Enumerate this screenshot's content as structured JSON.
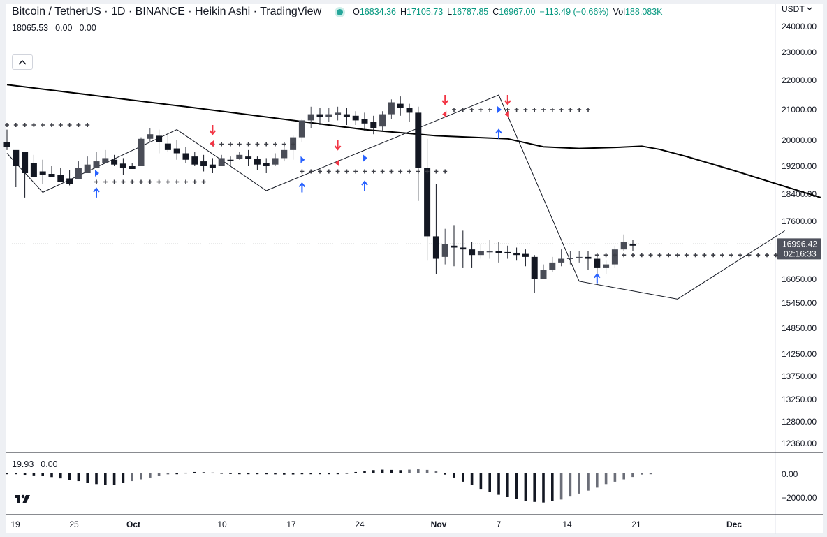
{
  "header": {
    "title": "Bitcoin / TetherUS · 1D · BINANCE · Heikin Ashi · TradingView",
    "o_label": "O",
    "o_value": "16834.36",
    "h_label": "H",
    "h_value": "17105.73",
    "l_label": "L",
    "l_value": "16787.85",
    "c_label": "C",
    "c_value": "16967.00",
    "change": "−113.49 (−0.66%)",
    "vol_label": "Vol",
    "vol_value": "188.083K"
  },
  "indicator_top": {
    "value1": "18065.53",
    "value2": "0.00",
    "value3": "0.00"
  },
  "indicator_bottom": {
    "value1": "19.93",
    "value2": "0.00"
  },
  "currency": "USDT",
  "collapse_icon": "chevron-up-icon",
  "logo_icon": "tradingview-logo-icon",
  "colors": {
    "up": "#4a4d57",
    "down": "#131722",
    "arrow_up": "#2962ff",
    "arrow_down": "#f23645",
    "price_tag": "#50535e",
    "grid": "#e0e3eb"
  },
  "chart_data": {
    "type": "candlestick",
    "price_axis": {
      "ticks": [
        "24000.00",
        "23000.00",
        "22000.00",
        "21000.00",
        "20000.00",
        "19200.00",
        "18400.00",
        "17600.00",
        "16050.00",
        "15450.00",
        "14850.00",
        "14250.00",
        "13750.00",
        "13250.00",
        "12800.00",
        "12360.00"
      ],
      "last_price": "16996.42",
      "countdown": "02:16:33"
    },
    "time_axis": {
      "ticks": [
        "19",
        "25",
        "Oct",
        "10",
        "17",
        "24",
        "Nov",
        "7",
        "14",
        "21",
        "Dec"
      ]
    },
    "oscillator_axis": {
      "ticks": [
        "0.00",
        "−2000.00"
      ]
    },
    "candles": [
      [
        19950,
        20350,
        19800,
        19700
      ],
      [
        19700,
        19650,
        19200,
        18600
      ],
      [
        19650,
        19600,
        19000,
        18300
      ],
      [
        19300,
        19550,
        18900,
        18900
      ],
      [
        19050,
        19400,
        18950,
        18700
      ],
      [
        18980,
        19200,
        18880,
        18950
      ],
      [
        18950,
        19150,
        18760,
        18750
      ],
      [
        18850,
        19100,
        18700,
        18650
      ],
      [
        18820,
        19350,
        19150,
        18900
      ],
      [
        19000,
        19500,
        19250,
        19000
      ],
      [
        19150,
        19650,
        19350,
        19150
      ],
      [
        19300,
        19700,
        19450,
        19300
      ],
      [
        19400,
        19550,
        19250,
        19200
      ],
      [
        19280,
        19450,
        19150,
        18950
      ],
      [
        19200,
        19300,
        19120,
        19120
      ],
      [
        19200,
        20100,
        20050,
        19250
      ],
      [
        20050,
        20400,
        20200,
        19950
      ],
      [
        20150,
        20350,
        19950,
        19600
      ],
      [
        19900,
        20250,
        19700,
        19650
      ],
      [
        19750,
        20000,
        19600,
        19400
      ],
      [
        19600,
        19800,
        19400,
        19300
      ],
      [
        19500,
        19650,
        19250,
        19200
      ],
      [
        19350,
        19550,
        19200,
        19050
      ],
      [
        19250,
        19450,
        19150,
        19000
      ],
      [
        19200,
        19550,
        19450,
        19200
      ],
      [
        19400,
        19500,
        19380,
        19200
      ],
      [
        19420,
        19650,
        19550,
        19400
      ],
      [
        19500,
        19700,
        19420,
        19200
      ],
      [
        19420,
        19500,
        19250,
        19100
      ],
      [
        19300,
        19450,
        19200,
        19000
      ],
      [
        19250,
        19600,
        19450,
        19200
      ],
      [
        19450,
        19850,
        19700,
        19350
      ],
      [
        19700,
        20150,
        20100,
        19400
      ],
      [
        20100,
        20700,
        20650,
        19950
      ],
      [
        20650,
        21100,
        20850,
        20400
      ],
      [
        20850,
        21050,
        20750,
        20500
      ],
      [
        20750,
        21050,
        20850,
        20600
      ],
      [
        20820,
        21100,
        20900,
        20650
      ],
      [
        20850,
        21050,
        20750,
        20500
      ],
      [
        20800,
        20950,
        20650,
        20500
      ],
      [
        20700,
        20900,
        20550,
        20300
      ],
      [
        20600,
        20800,
        20400,
        20200
      ],
      [
        20450,
        20950,
        20850,
        20300
      ],
      [
        20850,
        21350,
        21250,
        20700
      ],
      [
        21200,
        21450,
        21050,
        20800
      ],
      [
        21050,
        21200,
        20900,
        20600
      ],
      [
        20900,
        21100,
        19150,
        18200
      ],
      [
        19150,
        20050,
        17200,
        16550
      ],
      [
        17200,
        18700,
        16600,
        16200
      ],
      [
        16650,
        17400,
        17000,
        16450
      ],
      [
        16950,
        17500,
        16900,
        16400
      ],
      [
        16900,
        17350,
        16850,
        16350
      ],
      [
        16850,
        17050,
        16700,
        16350
      ],
      [
        16700,
        17000,
        16800,
        16600
      ],
      [
        16780,
        17100,
        16800,
        16600
      ],
      [
        16800,
        17050,
        16750,
        16500
      ],
      [
        16780,
        16950,
        16750,
        16600
      ],
      [
        16760,
        16900,
        16700,
        16550
      ],
      [
        16730,
        16850,
        16650,
        16400
      ],
      [
        16650,
        16700,
        16050,
        15700
      ],
      [
        16050,
        16450,
        16300,
        16050
      ],
      [
        16300,
        16650,
        16500,
        16250
      ],
      [
        16500,
        16850,
        16600,
        16400
      ],
      [
        16600,
        16800,
        16620,
        16450
      ],
      [
        16620,
        16800,
        16650,
        16500
      ],
      [
        16650,
        16800,
        16600,
        16300
      ],
      [
        16600,
        16650,
        16350,
        16150
      ],
      [
        16350,
        16550,
        16450,
        16200
      ],
      [
        16450,
        16950,
        16850,
        16350
      ],
      [
        16850,
        17250,
        17050,
        16800
      ],
      [
        17000,
        17100,
        16950,
        16800
      ]
    ],
    "moving_average": [
      [
        0,
        21850
      ],
      [
        20,
        21100
      ],
      [
        40,
        20350
      ],
      [
        48,
        20150
      ],
      [
        56,
        20050
      ],
      [
        60,
        19800
      ],
      [
        64,
        19750
      ],
      [
        68,
        19780
      ],
      [
        71,
        19820
      ],
      [
        73,
        19720
      ],
      [
        76,
        19500
      ],
      [
        81,
        19100
      ],
      [
        86,
        18700
      ],
      [
        91,
        18300
      ]
    ],
    "zigzag": [
      [
        0,
        19600
      ],
      [
        4,
        18450
      ],
      [
        19,
        20350
      ],
      [
        29,
        18500
      ],
      [
        55,
        21500
      ],
      [
        64,
        16000
      ],
      [
        75,
        15550
      ],
      [
        87,
        17350
      ]
    ],
    "oscillator": [
      -20,
      -60,
      -120,
      -170,
      -230,
      -310,
      -420,
      -530,
      -650,
      -790,
      -900,
      -1000,
      -950,
      -800,
      -650,
      -500,
      -350,
      -200,
      -80,
      0,
      60,
      120,
      100,
      70,
      40,
      20,
      0,
      -10,
      -30,
      -60,
      -80,
      -100,
      -90,
      -60,
      -40,
      -30,
      -10,
      0,
      40,
      120,
      200,
      280,
      320,
      300,
      280,
      320,
      350,
      300,
      200,
      -100,
      -350,
      -700,
      -1000,
      -1300,
      -1550,
      -1800,
      -2000,
      -2150,
      -2300,
      -2400,
      -2450,
      -2350,
      -2200,
      -1950,
      -1700,
      -1450,
      -1200,
      -900,
      -700,
      -500,
      -300,
      -100,
      -30
    ]
  }
}
